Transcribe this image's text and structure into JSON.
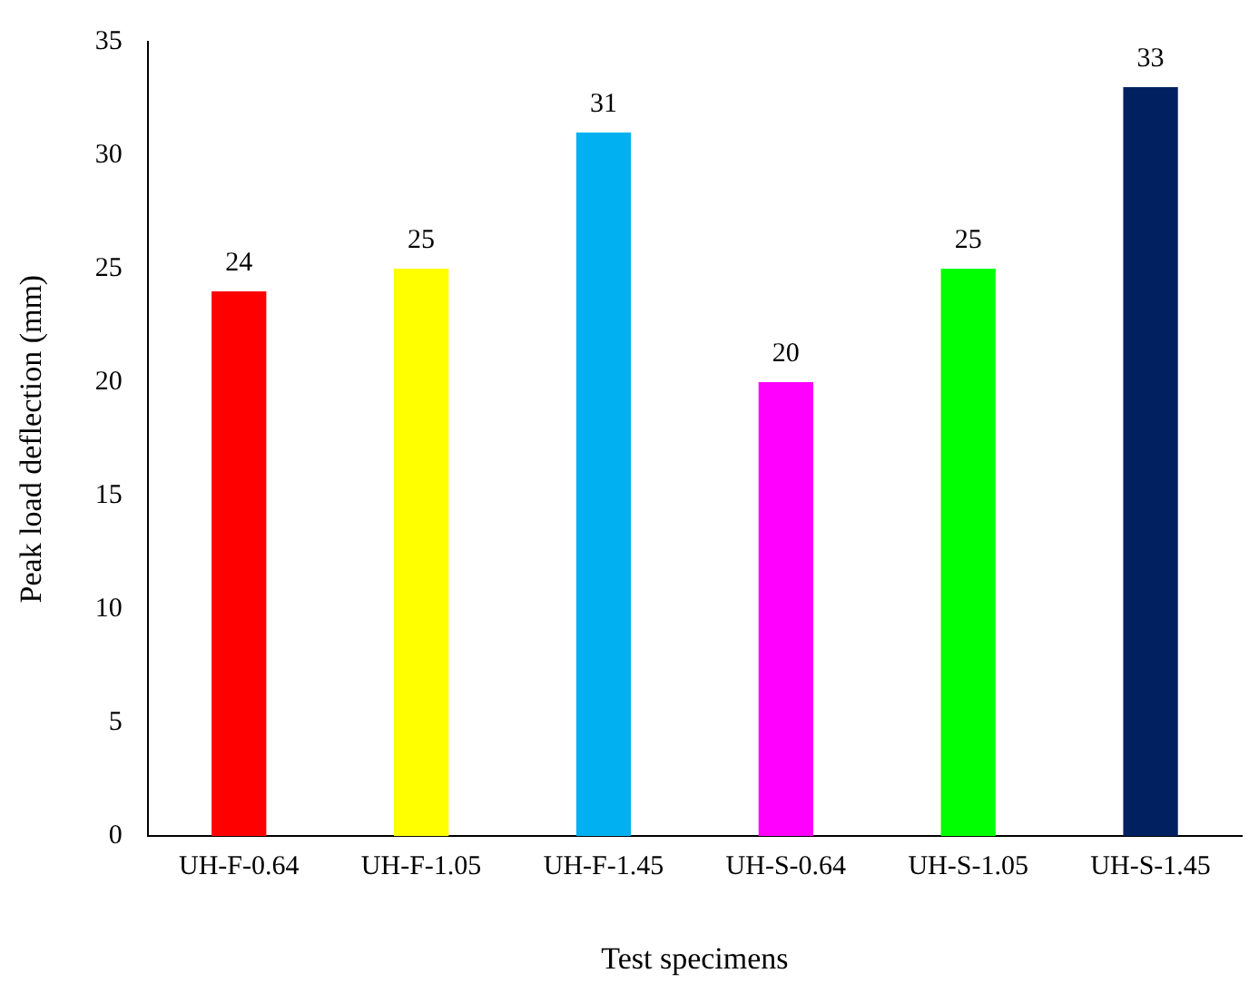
{
  "chart_data": {
    "type": "bar",
    "xlabel": "Test specimens",
    "ylabel": "Peak load deflection (mm)",
    "categories": [
      "UH-F-0.64",
      "UH-F-1.05",
      "UH-F-1.45",
      "UH-S-0.64",
      "UH-S-1.05",
      "UH-S-1.45"
    ],
    "values": [
      24,
      25,
      31,
      20,
      25,
      33
    ],
    "colors": [
      "#ff0000",
      "#ffff00",
      "#00b0f0",
      "#ff00ff",
      "#00ff00",
      "#002060"
    ],
    "ylim": [
      0,
      35
    ],
    "yticks": [
      0,
      5,
      10,
      15,
      20,
      25,
      30,
      35
    ],
    "grid": false,
    "legend": false,
    "data_labels": true
  }
}
